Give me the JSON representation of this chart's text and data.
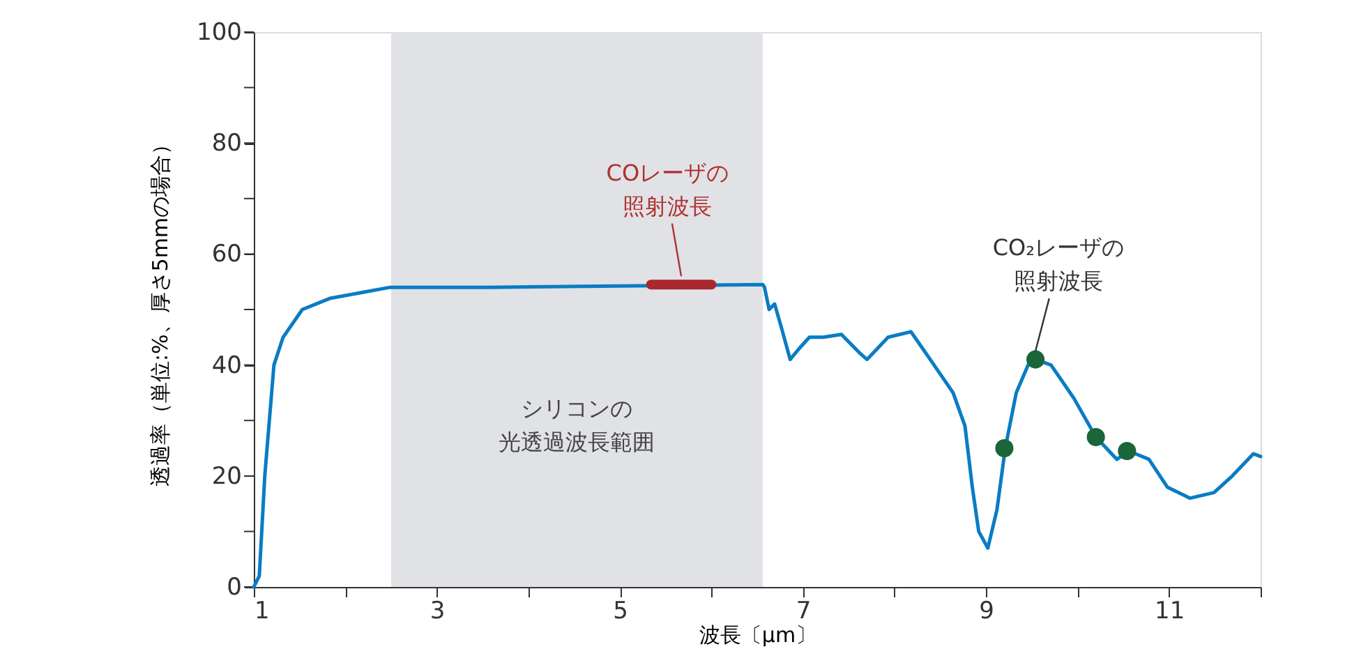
{
  "chart_data": {
    "type": "line",
    "xlabel": "波長〔μm〕",
    "ylabel": "透過率（単位:%、厚さ5mmの場合）",
    "xlim": [
      1,
      12
    ],
    "xticks": [
      1,
      {
        "value": 2,
        "label": null
      },
      3,
      {
        "value": 4,
        "label": null
      },
      5,
      {
        "value": 6,
        "label": null
      },
      7,
      {
        "value": 8,
        "label": null
      },
      9,
      {
        "value": 10,
        "label": null
      },
      11,
      {
        "value": 12,
        "label": null
      }
    ],
    "ylim": [
      0,
      100
    ],
    "yticks": [
      0,
      {
        "value": 10,
        "label": null
      },
      20,
      {
        "value": 30,
        "label": null
      },
      40,
      {
        "value": 50,
        "label": null
      },
      60,
      {
        "value": 70,
        "label": null
      },
      80,
      {
        "value": 90,
        "label": null
      },
      100
    ],
    "grid": false,
    "series": [
      {
        "color": "#0a7cc4",
        "x": [
          1,
          1.06,
          1.12,
          1.22,
          1.32,
          1.53,
          1.83,
          2.49,
          3.56,
          6.56,
          6.58,
          6.63,
          6.69,
          6.76,
          6.86,
          6.96,
          7.07,
          7.22,
          7.42,
          7.63,
          7.7,
          7.93,
          8.18,
          8.39,
          8.64,
          8.77,
          8.85,
          8.92,
          9.02,
          9.12,
          9.21,
          9.33,
          9.46,
          9.54,
          9.71,
          9.96,
          10.2,
          10.43,
          10.56,
          10.78,
          10.98,
          11.23,
          11.49,
          11.69,
          11.92,
          12
        ],
        "values": [
          0,
          2,
          20,
          40,
          45,
          50,
          52,
          54,
          54,
          54.5,
          54,
          50,
          51,
          47,
          41,
          43,
          45,
          45,
          45.5,
          42,
          41,
          45,
          46,
          41,
          35,
          29,
          18,
          10,
          7,
          14,
          25,
          35,
          40,
          41,
          40,
          34,
          27,
          23,
          24.5,
          23,
          18,
          16,
          17,
          20,
          24,
          23.5
        ]
      },
      {
        "type": "line",
        "color": "#a8282e",
        "x": [
          5.34,
          6.0
        ],
        "values": [
          54.5,
          54.5
        ]
      },
      {
        "type": "scatter",
        "color": "#1a6638",
        "marker": "circle",
        "x": [
          9.2,
          9.54,
          10.2,
          10.54
        ],
        "values": [
          25,
          41,
          27,
          24.5
        ]
      }
    ],
    "bands": [
      {
        "axis": "x",
        "from": 2.5,
        "to": 6.56,
        "label": "シリコンの光透過波長範囲",
        "color": "#e1e2e6"
      }
    ],
    "annotations": [
      {
        "text": "COレーザの照射波長",
        "x": 5.67,
        "y": 54.5
      },
      {
        "text": "CO₂レーザの照射波長",
        "x": 9.54,
        "y": 41
      }
    ]
  }
}
